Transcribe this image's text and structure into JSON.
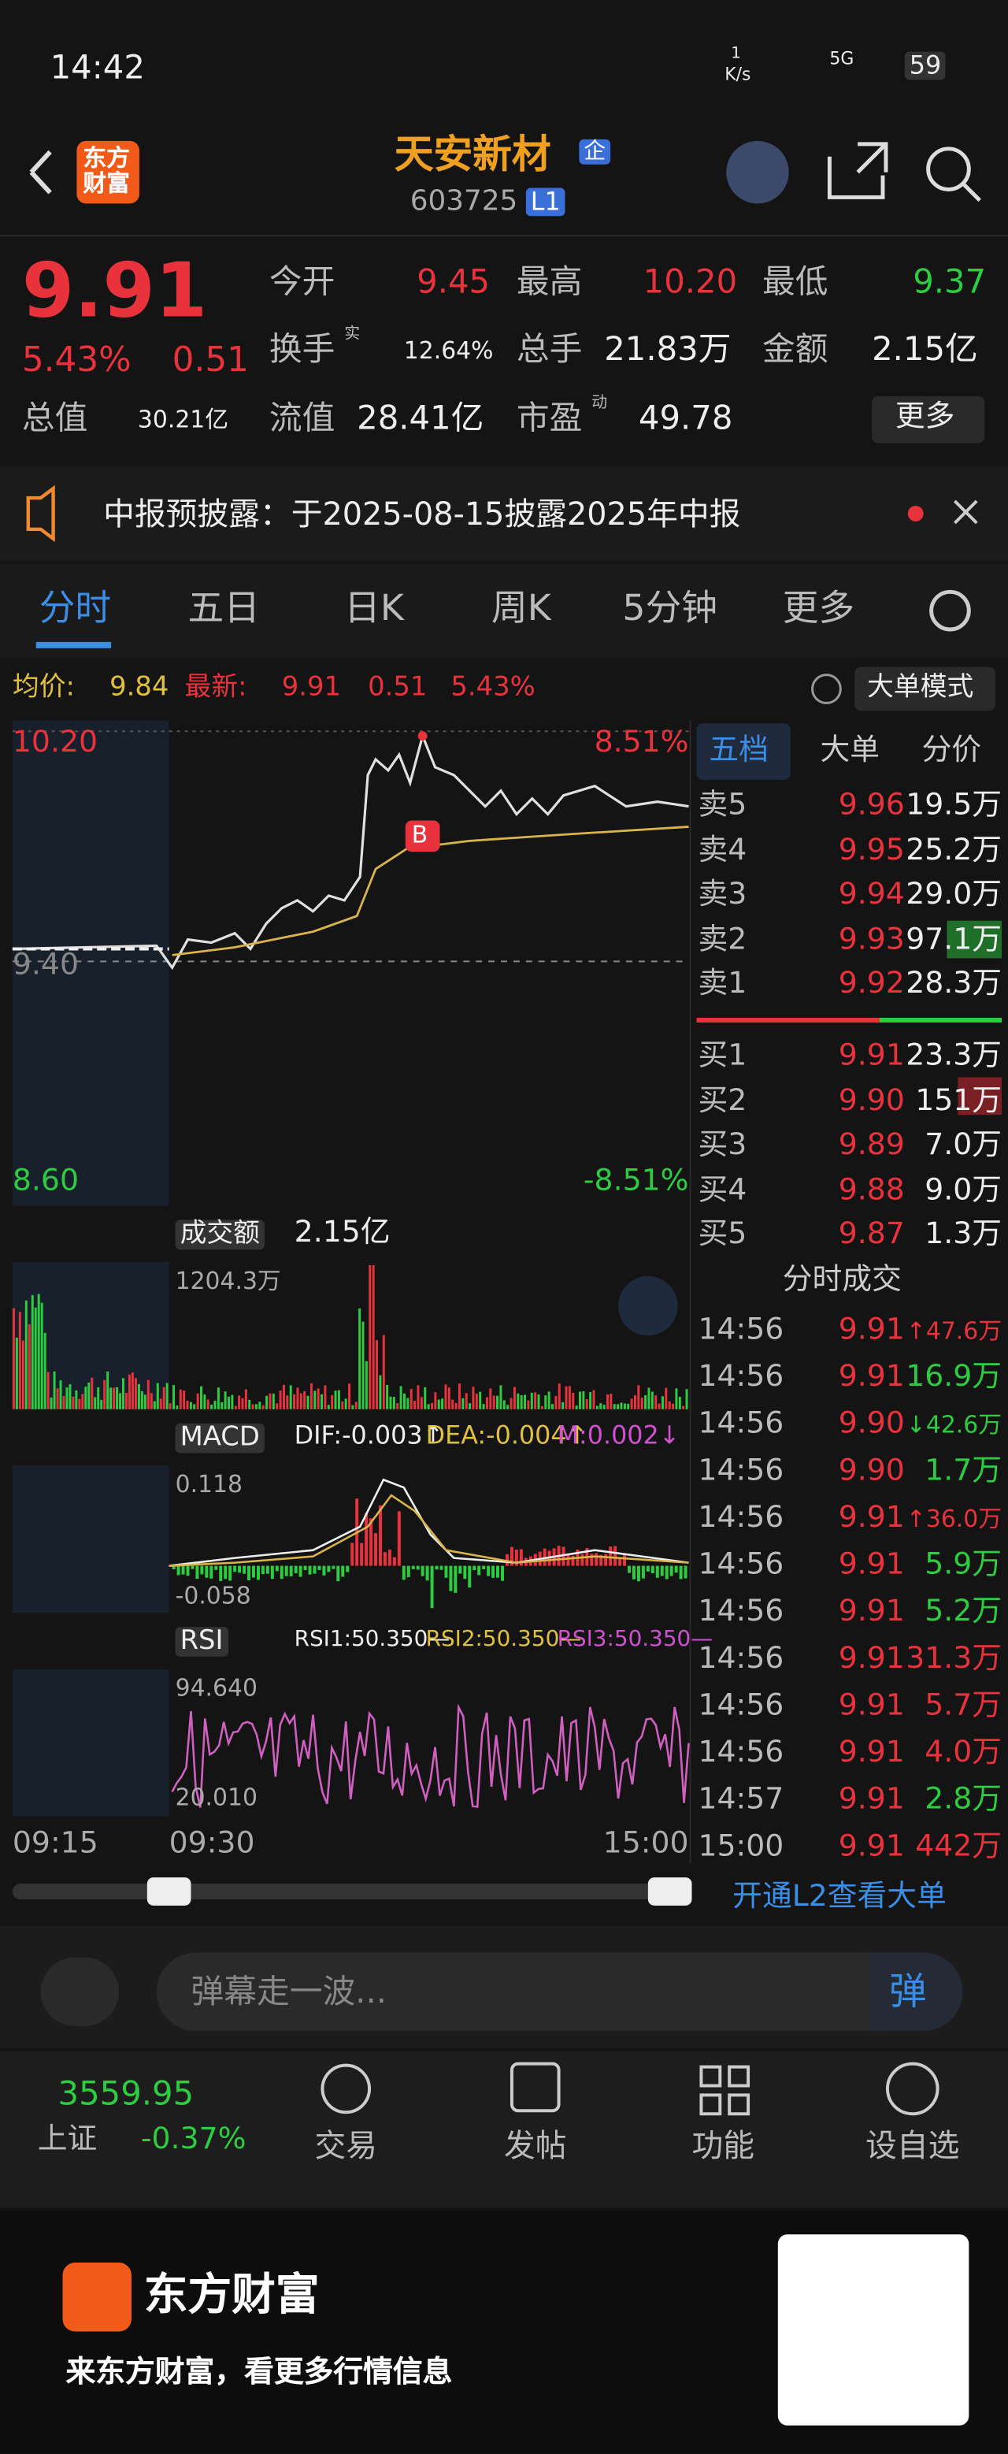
{
  "status_bar": {
    "time": "14:42",
    "speed": "1",
    "speed_unit": "K/s",
    "network": "5G",
    "battery": "59"
  },
  "header": {
    "logo": "东方\n财富",
    "title": "天安新材",
    "badge": "企",
    "code": "603725",
    "level": "L1"
  },
  "quote": {
    "price": "9.91",
    "change_pct": "5.43%",
    "change": "0.51",
    "fields": [
      {
        "label": "今开",
        "value": "9.45"
      },
      {
        "label": "最高",
        "value": "10.20"
      },
      {
        "label": "最低",
        "value": "9.37"
      },
      {
        "label": "换手",
        "sup": "实",
        "value": "12.64%"
      },
      {
        "label": "总手",
        "value": "21.83万"
      },
      {
        "label": "金额",
        "value": "2.15亿"
      },
      {
        "label": "总值",
        "value": "30.21亿"
      },
      {
        "label": "流值",
        "value": "28.41亿"
      },
      {
        "label": "市盈",
        "sup": "动",
        "value": "49.78"
      }
    ],
    "more": "更多"
  },
  "notice": {
    "text": "中报预披露：于2025-08-15披露2025年中报"
  },
  "tabs": [
    "分时",
    "五日",
    "日K",
    "周K",
    "5分钟",
    "更多"
  ],
  "info_line": {
    "avg_label": "均价:",
    "avg": "9.84",
    "latest_label": "最新:",
    "latest": "9.91",
    "change": "0.51",
    "pct": "5.43%",
    "mode": "大单模式"
  },
  "chart": {
    "price_high": "10.20",
    "pct_high": "8.51%",
    "price_mid": "9.40",
    "price_low": "8.60",
    "pct_low": "-8.51%",
    "marker": "B",
    "volume_label": "成交额",
    "volume": "2.15亿",
    "volume_max": "1204.3万",
    "macd_label": "MACD",
    "dif": "DIF:-0.003↑",
    "dea": "DEA:-0.004↑",
    "m": "M:0.002↓",
    "macd_high": "0.118",
    "macd_low": "-0.058",
    "rsi_label": "RSI",
    "rsi1": "RSI1:50.350—",
    "rsi2": "RSI2:50.350—",
    "rsi3": "RSI3:50.350—",
    "rsi_high": "94.640",
    "rsi_low": "20.010",
    "times": [
      "09:15",
      "09:30",
      "15:00"
    ]
  },
  "order_book": {
    "tabs": [
      "五档",
      "大单",
      "分价"
    ],
    "asks": [
      {
        "label": "卖5",
        "price": "9.96",
        "volume": "19.5万"
      },
      {
        "label": "卖4",
        "price": "9.95",
        "volume": "25.2万"
      },
      {
        "label": "卖3",
        "price": "9.94",
        "volume": "29.0万"
      },
      {
        "label": "卖2",
        "price": "9.93",
        "volume": "97.1万"
      },
      {
        "label": "卖1",
        "price": "9.92",
        "volume": "28.3万"
      }
    ],
    "bids": [
      {
        "label": "买1",
        "price": "9.91",
        "volume": "23.3万"
      },
      {
        "label": "买2",
        "price": "9.90",
        "volume": "151万"
      },
      {
        "label": "买3",
        "price": "9.89",
        "volume": "7.0万"
      },
      {
        "label": "买4",
        "price": "9.88",
        "volume": "9.0万"
      },
      {
        "label": "买5",
        "price": "9.87",
        "volume": "1.3万"
      }
    ]
  },
  "trades": {
    "title": "分时成交",
    "rows": [
      {
        "time": "14:56",
        "price": "9.91",
        "volume": "↑47.6万",
        "color": "#e8323c"
      },
      {
        "time": "14:56",
        "price": "9.91",
        "volume": "16.9万",
        "color": "#2ecc40"
      },
      {
        "time": "14:56",
        "price": "9.90",
        "volume": "↓42.6万",
        "color": "#2ecc40"
      },
      {
        "time": "14:56",
        "price": "9.90",
        "volume": "1.7万",
        "color": "#2ecc40"
      },
      {
        "time": "14:56",
        "price": "9.91",
        "volume": "↑36.0万",
        "color": "#e8323c"
      },
      {
        "time": "14:56",
        "price": "9.91",
        "volume": "5.9万",
        "color": "#2ecc40"
      },
      {
        "time": "14:56",
        "price": "9.91",
        "volume": "5.2万",
        "color": "#2ecc40"
      },
      {
        "time": "14:56",
        "price": "9.91",
        "volume": "31.3万",
        "color": "#e8323c"
      },
      {
        "time": "14:56",
        "price": "9.91",
        "volume": "5.7万",
        "color": "#e8323c"
      },
      {
        "time": "14:56",
        "price": "9.91",
        "volume": "4.0万",
        "color": "#e8323c"
      },
      {
        "time": "14:57",
        "price": "9.91",
        "volume": "2.8万",
        "color": "#2ecc40"
      },
      {
        "time": "15:00",
        "price": "9.91",
        "volume": "442万",
        "color": "#e8323c"
      }
    ],
    "l2_banner": "开通L2查看大单"
  },
  "danmaku": {
    "placeholder": "弹幕走一波...",
    "button": "弹"
  },
  "bottom_nav": {
    "index_value": "3559.95",
    "index_name": "上证",
    "index_change": "-0.37%",
    "items": [
      "交易",
      "发帖",
      "功能",
      "设自选"
    ]
  },
  "footer": {
    "brand": "东方财富",
    "slogan": "来东方财富，看更多行情信息"
  }
}
